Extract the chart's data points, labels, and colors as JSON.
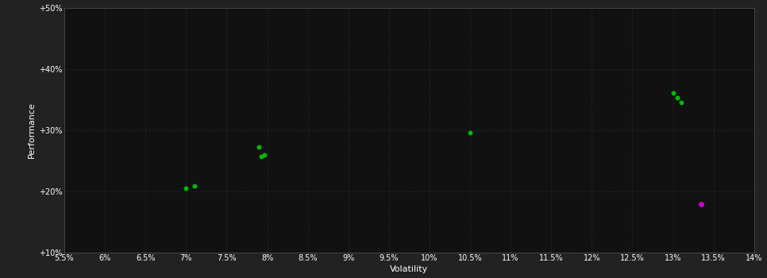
{
  "bg_color": "#222222",
  "plot_bg_color": "#111111",
  "grid_color": "#333333",
  "text_color": "#ffffff",
  "xlabel": "Volatility",
  "ylabel": "Performance",
  "xlim": [
    0.055,
    0.14
  ],
  "ylim": [
    0.1,
    0.5
  ],
  "xticks": [
    0.055,
    0.06,
    0.065,
    0.07,
    0.075,
    0.08,
    0.085,
    0.09,
    0.095,
    0.1,
    0.105,
    0.11,
    0.115,
    0.12,
    0.125,
    0.13,
    0.135,
    0.14
  ],
  "yticks": [
    0.1,
    0.2,
    0.3,
    0.4,
    0.5
  ],
  "xtick_labels": [
    "5.5%",
    "6%",
    "6.5%",
    "7%",
    "7.5%",
    "8%",
    "8.5%",
    "9%",
    "9.5%",
    "10%",
    "10.5%",
    "11%",
    "11.5%",
    "12%",
    "12.5%",
    "13%",
    "13.5%",
    "14%"
  ],
  "ytick_labels": [
    "+10%",
    "+20%",
    "+30%",
    "+40%",
    "+50%"
  ],
  "green_points": [
    [
      0.07,
      0.205
    ],
    [
      0.071,
      0.208
    ],
    [
      0.079,
      0.272
    ],
    [
      0.0793,
      0.256
    ],
    [
      0.0797,
      0.259
    ],
    [
      0.105,
      0.295
    ],
    [
      0.13,
      0.36
    ],
    [
      0.1305,
      0.353
    ],
    [
      0.131,
      0.345
    ]
  ],
  "magenta_points": [
    [
      0.1335,
      0.178
    ]
  ],
  "green_color": "#00bb00",
  "magenta_color": "#cc00cc",
  "marker_size": 18,
  "magenta_marker_size": 25,
  "tick_fontsize": 7,
  "label_fontsize": 8
}
